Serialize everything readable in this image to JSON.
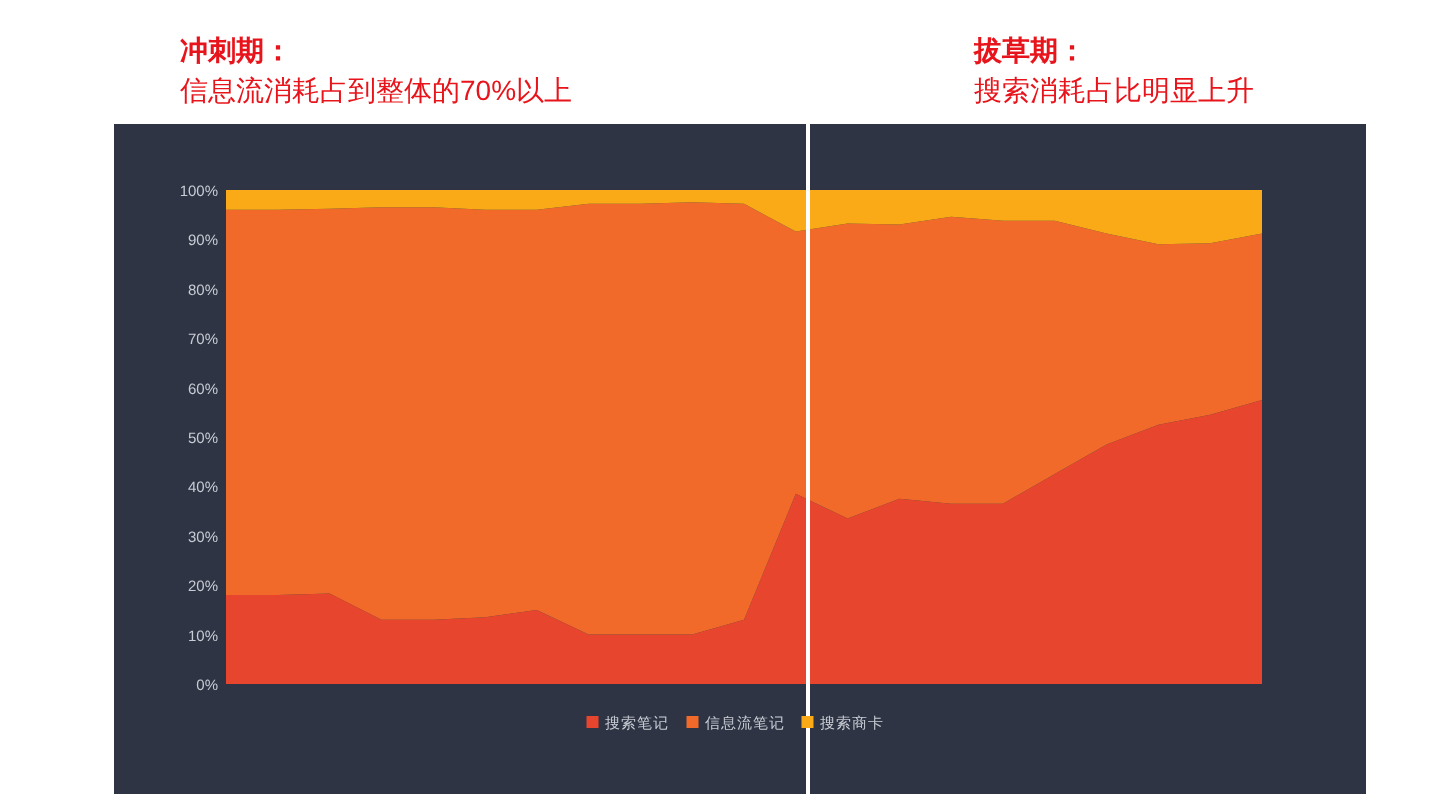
{
  "chart_data": {
    "type": "area",
    "stacked": true,
    "annotations": [
      "冲刺期：",
      "信息流消耗占到整体的70%以上",
      "拔草期：",
      "搜索消耗占比明显上升"
    ],
    "categories": [
      null,
      null,
      null,
      null,
      null,
      null,
      null,
      null,
      null,
      null,
      null,
      null,
      null,
      null,
      null,
      null,
      null,
      null,
      null,
      null,
      null
    ],
    "series": [
      {
        "name": "搜索笔记",
        "color": "#e8452f",
        "values": [
          18,
          18,
          18.3,
          13,
          13,
          13.5,
          15,
          10,
          10,
          10,
          13,
          38.5,
          33.5,
          37.5,
          36.5,
          36.5,
          42.5,
          48.5,
          52.5,
          54.5,
          57.5
        ]
      },
      {
        "name": "信息流笔记",
        "color": "#f26a2a",
        "values": [
          78,
          78,
          77.9,
          83.5,
          83.5,
          82.5,
          81,
          87.2,
          87.2,
          87.5,
          84.2,
          53.1,
          59.7,
          55.5,
          58.1,
          57.3,
          51.3,
          42.7,
          36.5,
          34.7,
          33.7
        ]
      },
      {
        "name": "搜索商卡",
        "color": "#fbaa17",
        "values": [
          4,
          4,
          3.8,
          3.5,
          3.5,
          4,
          4,
          2.8,
          2.8,
          2.5,
          2.8,
          8.4,
          6.8,
          7,
          5.4,
          6.2,
          6.2,
          8.8,
          11,
          10.8,
          8.8
        ]
      }
    ],
    "ylim": [
      0,
      100
    ],
    "yticks": [
      {
        "value": 0,
        "label": "0%"
      },
      {
        "value": 10,
        "label": "10%"
      },
      {
        "value": 20,
        "label": "20%"
      },
      {
        "value": 30,
        "label": "30%"
      },
      {
        "value": 40,
        "label": "40%"
      },
      {
        "value": 50,
        "label": "50%"
      },
      {
        "value": 60,
        "label": "60%"
      },
      {
        "value": 70,
        "label": "70%"
      },
      {
        "value": 80,
        "label": "80%"
      },
      {
        "value": 90,
        "label": "90%"
      },
      {
        "value": 100,
        "label": "100%"
      }
    ],
    "tick_labels": "y",
    "grid": false,
    "legend": "bottom"
  }
}
